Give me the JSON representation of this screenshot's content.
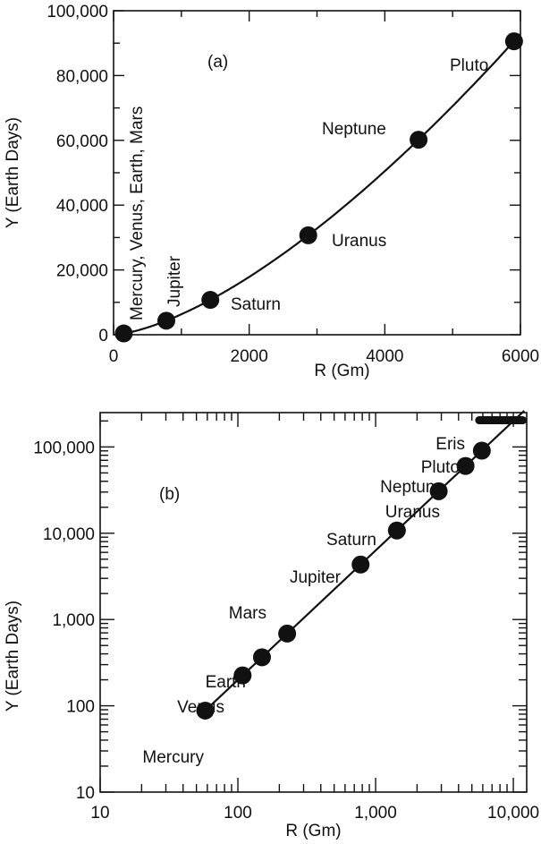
{
  "chart_data": [
    {
      "type": "scatter",
      "panel_label": "(a)",
      "xlabel": "R (Gm)",
      "ylabel": "Y (Earth Days)",
      "xlim": [
        0,
        6000
      ],
      "ylim": [
        0,
        100000
      ],
      "x_ticks": [
        0,
        2000,
        4000,
        6000
      ],
      "x_tick_labels": [
        "0",
        "2000",
        "4000",
        "6000"
      ],
      "y_ticks": [
        0,
        20000,
        40000,
        60000,
        80000,
        100000
      ],
      "y_tick_labels": [
        "0",
        "20,000",
        "40,000",
        "60,000",
        "80,000",
        "100,000"
      ],
      "fit_curve": true,
      "points": [
        {
          "label": "Mercury, Venus, Earth, Mars",
          "x": 150,
          "y": 400
        },
        {
          "label": "Jupiter",
          "x": 778,
          "y": 4333
        },
        {
          "label": "Saturn",
          "x": 1427,
          "y": 10759
        },
        {
          "label": "Uranus",
          "x": 2871,
          "y": 30687
        },
        {
          "label": "Neptune",
          "x": 4498,
          "y": 60190
        },
        {
          "label": "Pluto",
          "x": 5906,
          "y": 90560
        }
      ]
    },
    {
      "type": "scatter",
      "panel_label": "(b)",
      "xlabel": "R (Gm)",
      "ylabel": "Y (Earth Days)",
      "x_scale": "log",
      "y_scale": "log",
      "xlim": [
        10,
        12500
      ],
      "ylim": [
        10,
        250000
      ],
      "x_ticks": [
        10,
        100,
        1000,
        10000
      ],
      "x_tick_labels": [
        "10",
        "100",
        "1,000",
        "10,000"
      ],
      "y_ticks": [
        10,
        100,
        1000,
        10000,
        100000
      ],
      "y_tick_labels": [
        "10",
        "100",
        "1,000",
        "10,000",
        "100,000"
      ],
      "fit_curve": true,
      "points": [
        {
          "label": "Mercury",
          "x": 57.9,
          "y": 88
        },
        {
          "label": "Venus",
          "x": 108.2,
          "y": 225
        },
        {
          "label": "Earth",
          "x": 149.6,
          "y": 365
        },
        {
          "label": "Mars",
          "x": 227.9,
          "y": 687
        },
        {
          "label": "Jupiter",
          "x": 778,
          "y": 4333
        },
        {
          "label": "Saturn",
          "x": 1427,
          "y": 10759
        },
        {
          "label": "Uranus",
          "x": 2871,
          "y": 30687
        },
        {
          "label": "Neptune",
          "x": 4498,
          "y": 60190
        },
        {
          "label": "Pluto",
          "x": 5906,
          "y": 90560
        }
      ],
      "range_marks": [
        {
          "label": "Eris",
          "x_min": 5650,
          "x_max": 11700,
          "y": 204000
        }
      ]
    }
  ]
}
